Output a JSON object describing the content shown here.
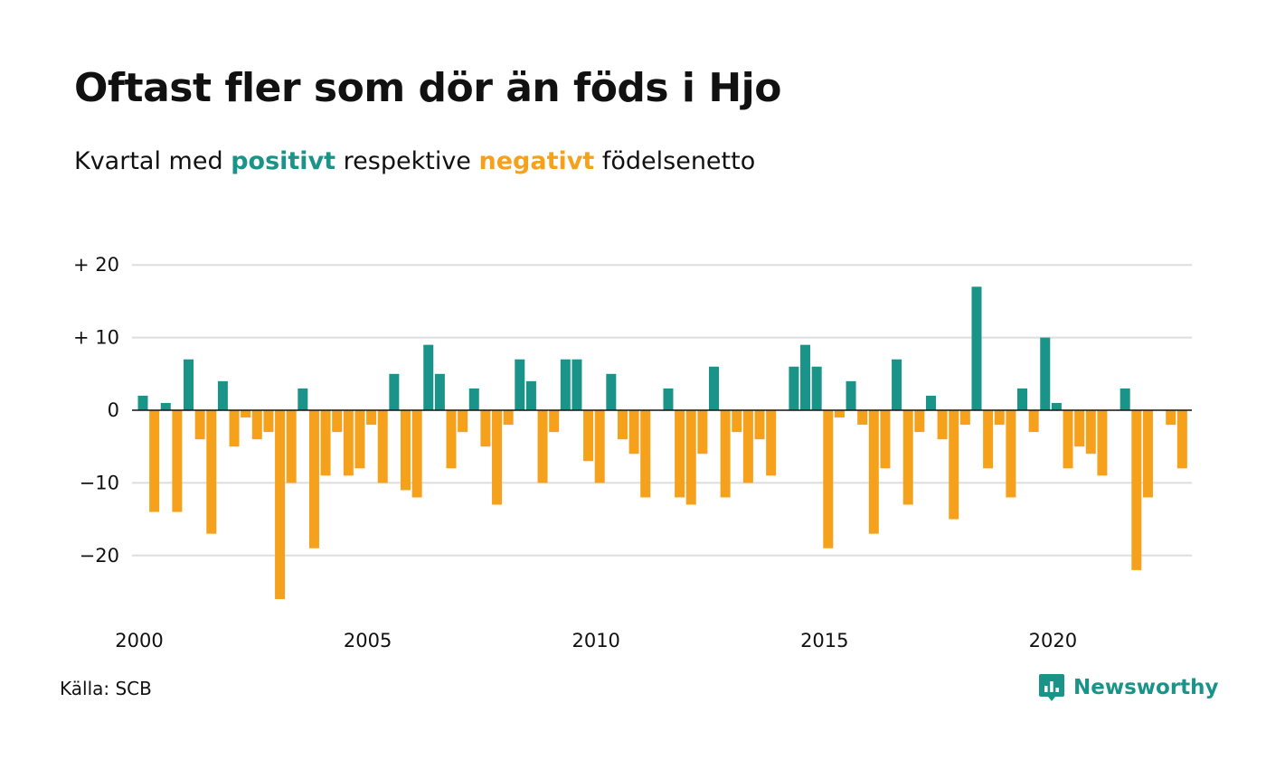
{
  "title": "Oftast fler som dör än föds i Hjo",
  "subtitle": {
    "before": "Kvartal med",
    "positive_word": "positivt",
    "middle": "respektive",
    "negative_word": "negativt",
    "after": "födelsenetto"
  },
  "source": "Källa: SCB",
  "brand": "Newsworthy",
  "colors": {
    "positive": "#1a9488",
    "negative": "#f5a11b",
    "grid": "#dddddd"
  },
  "chart_data": {
    "type": "bar",
    "x_start_year": 2000,
    "periods_per_year": 4,
    "x_ticks": [
      "2000",
      "2005",
      "2010",
      "2015",
      "2020"
    ],
    "y_ticks": [
      "+ 20",
      "+ 10",
      "0",
      "−10",
      "−20"
    ],
    "y_tick_values": [
      20,
      10,
      0,
      -10,
      -20
    ],
    "ylim": [
      -28,
      20
    ],
    "values": [
      2,
      -14,
      1,
      -14,
      7,
      -4,
      -17,
      4,
      -5,
      -1,
      -4,
      -3,
      -26,
      -10,
      3,
      -19,
      -9,
      -3,
      -9,
      -8,
      -2,
      -10,
      5,
      -11,
      -12,
      9,
      5,
      -8,
      -3,
      3,
      -5,
      -13,
      -2,
      7,
      4,
      -10,
      -3,
      7,
      7,
      -7,
      -10,
      5,
      -4,
      -6,
      -12,
      0,
      3,
      -12,
      -13,
      -6,
      6,
      -12,
      -3,
      -10,
      -4,
      -9,
      0,
      6,
      9,
      6,
      -19,
      -1,
      4,
      -2,
      -17,
      -8,
      7,
      -13,
      -3,
      2,
      -4,
      -15,
      -2,
      17,
      -8,
      -2,
      -12,
      3,
      -3,
      10,
      1,
      -8,
      -5,
      -6,
      -9,
      0,
      3,
      -22,
      -12,
      0,
      -2,
      -8
    ],
    "grid": true,
    "legend": "none"
  }
}
